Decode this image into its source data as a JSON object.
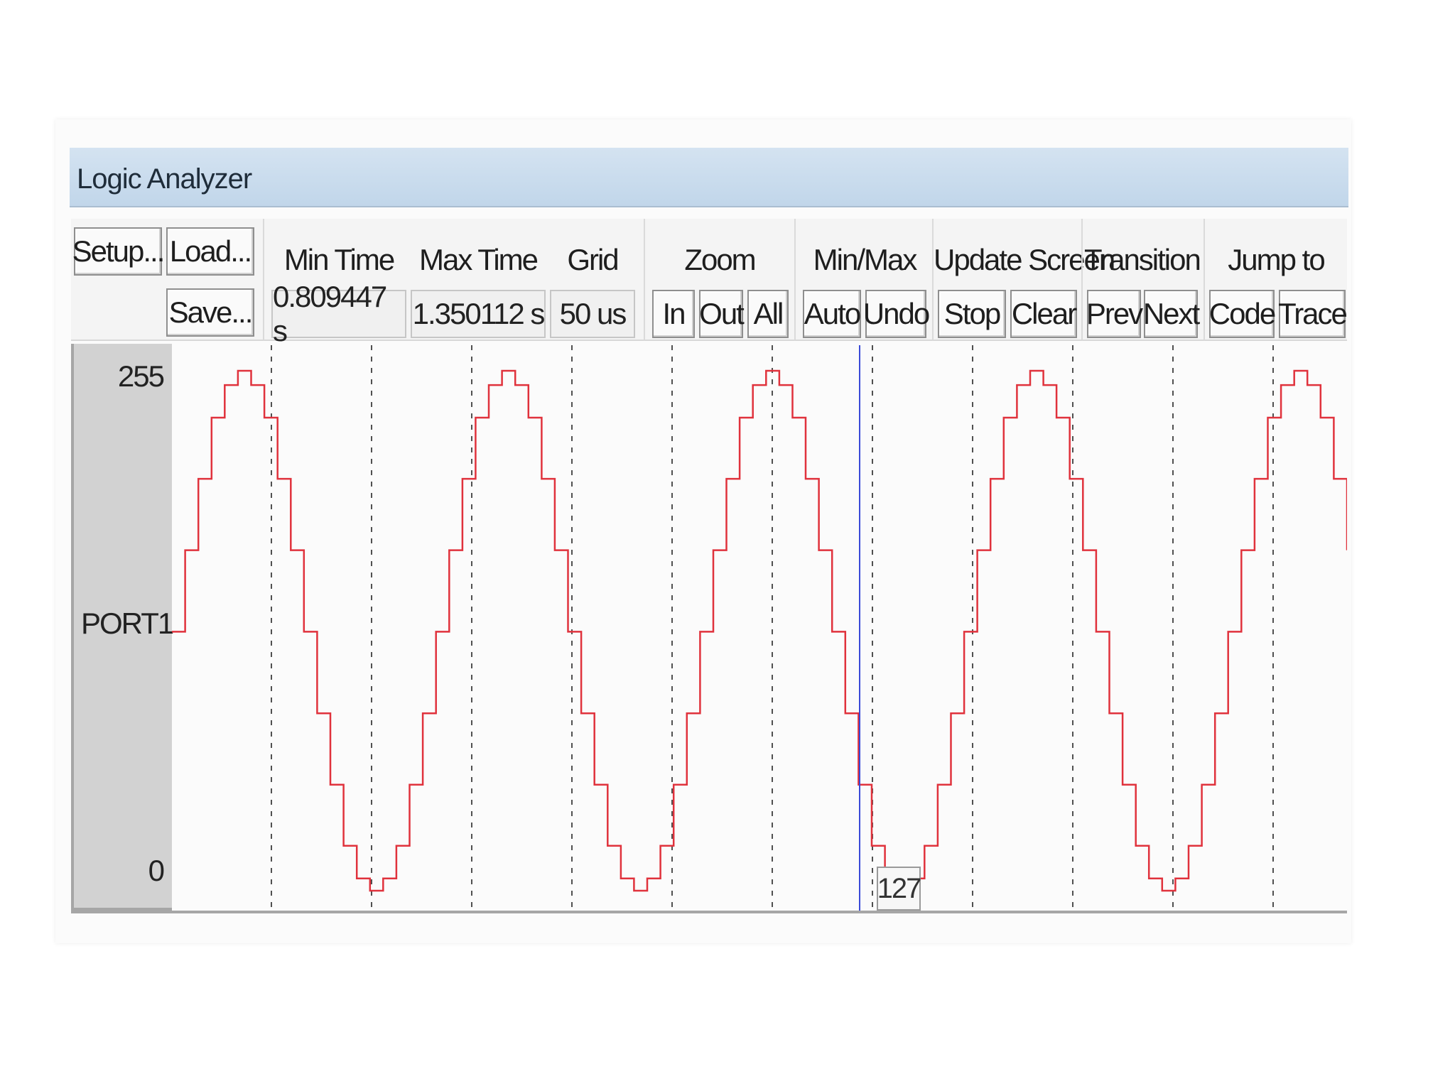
{
  "window": {
    "title": "Logic Analyzer"
  },
  "toolbar": {
    "setup": "Setup...",
    "load": "Load...",
    "save": "Save...",
    "min_time_label": "Min Time",
    "min_time_value": "0.809447 s",
    "max_time_label": "Max Time",
    "max_time_value": "1.350112 s",
    "grid_label": "Grid",
    "grid_value": "50 us",
    "zoom_label": "Zoom",
    "zoom_in": "In",
    "zoom_out": "Out",
    "zoom_all": "All",
    "minmax_label": "Min/Max",
    "minmax_auto": "Auto",
    "minmax_undo": "Undo",
    "update_label": "Update Screen",
    "update_stop": "Stop",
    "update_clear": "Clear",
    "transition_label": "Transition",
    "transition_prev": "Prev",
    "transition_next": "Next",
    "jump_label": "Jump to",
    "jump_code": "Code",
    "jump_trace": "Trace"
  },
  "plot": {
    "signal_name": "PORT1",
    "y_max_label": "255",
    "y_min_label": "0",
    "cursor_value": "127"
  },
  "colors": {
    "trace": "#e0323c",
    "grid": "#505050",
    "cursor": "#3a4bd8"
  },
  "chart_data": {
    "type": "line",
    "ylim": [
      0,
      255
    ],
    "samples_per_cycle": 20,
    "cycles_visible": 4.45,
    "series": [
      {
        "name": "PORT1",
        "values": [
          127,
          167,
          202,
          232,
          248,
          255,
          248,
          232,
          202,
          167,
          127,
          87,
          52,
          22,
          6,
          0,
          6,
          22,
          52,
          87
        ]
      }
    ]
  }
}
